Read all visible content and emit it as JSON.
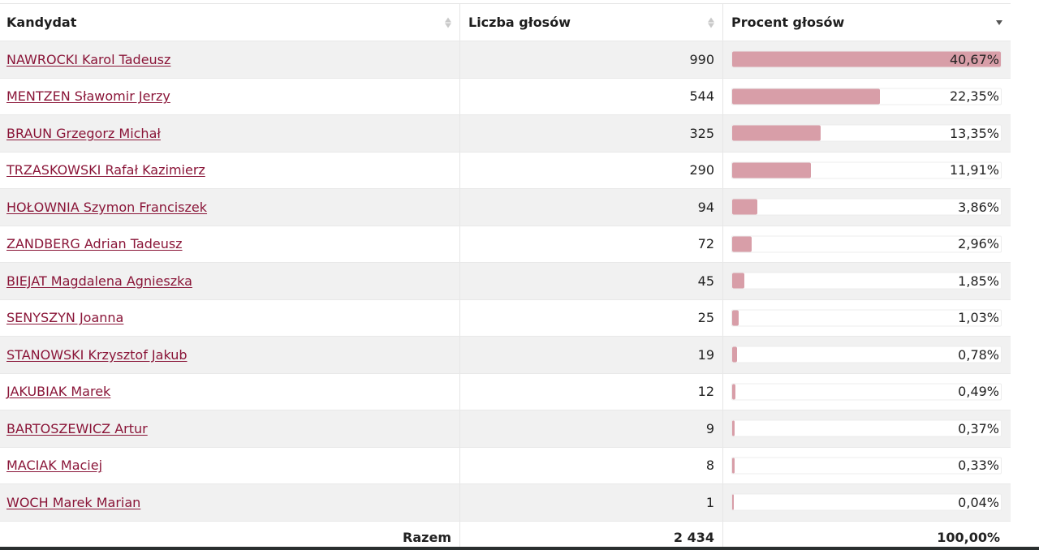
{
  "header": {
    "col_candidate": "Kandydat",
    "col_votes": "Liczba głosów",
    "col_percent": "Procent głosów"
  },
  "rows": [
    {
      "name": "NAWROCKI Karol Tadeusz",
      "votes": "990",
      "percent": "40,67%",
      "fraction": 0.4067
    },
    {
      "name": "MENTZEN Sławomir Jerzy",
      "votes": "544",
      "percent": "22,35%",
      "fraction": 0.2235
    },
    {
      "name": "BRAUN Grzegorz Michał",
      "votes": "325",
      "percent": "13,35%",
      "fraction": 0.1335
    },
    {
      "name": "TRZASKOWSKI Rafał Kazimierz",
      "votes": "290",
      "percent": "11,91%",
      "fraction": 0.1191
    },
    {
      "name": "HOŁOWNIA Szymon Franciszek",
      "votes": "94",
      "percent": "3,86%",
      "fraction": 0.0386
    },
    {
      "name": "ZANDBERG Adrian Tadeusz",
      "votes": "72",
      "percent": "2,96%",
      "fraction": 0.0296
    },
    {
      "name": "BIEJAT Magdalena Agnieszka",
      "votes": "45",
      "percent": "1,85%",
      "fraction": 0.0185
    },
    {
      "name": "SENYSZYN Joanna",
      "votes": "25",
      "percent": "1,03%",
      "fraction": 0.0103
    },
    {
      "name": "STANOWSKI Krzysztof Jakub",
      "votes": "19",
      "percent": "0,78%",
      "fraction": 0.0078
    },
    {
      "name": "JAKUBIAK Marek",
      "votes": "12",
      "percent": "0,49%",
      "fraction": 0.0049
    },
    {
      "name": "BARTOSZEWICZ Artur",
      "votes": "9",
      "percent": "0,37%",
      "fraction": 0.0037
    },
    {
      "name": "MACIAK Maciej",
      "votes": "8",
      "percent": "0,33%",
      "fraction": 0.0033
    },
    {
      "name": "WOCH Marek Marian",
      "votes": "1",
      "percent": "0,04%",
      "fraction": 0.0004
    }
  ],
  "footer": {
    "label": "Razem",
    "total_votes": "2 434",
    "total_percent": "100,00%"
  },
  "colors": {
    "link": "#8a1538",
    "bar_fill": "#d89ea8",
    "row_alt": "#f1f1f1"
  },
  "icons": {
    "sort_candidate": "sort-both-icon",
    "sort_votes": "sort-both-icon",
    "sort_percent": "sort-descending-icon"
  }
}
